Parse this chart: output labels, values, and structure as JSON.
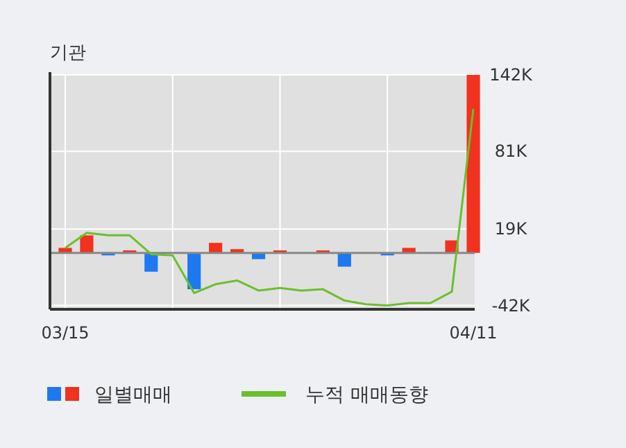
{
  "chart_data": {
    "type": "bar",
    "title": "기관",
    "categories": [
      "03/15",
      null,
      null,
      null,
      null,
      null,
      null,
      null,
      null,
      null,
      null,
      null,
      null,
      null,
      null,
      null,
      null,
      null,
      null,
      "04/11"
    ],
    "series": [
      {
        "name": "일별매매",
        "values": [
          4000,
          14000,
          -2000,
          2000,
          -15000,
          0,
          -29000,
          8000,
          3000,
          -5000,
          2000,
          0,
          2000,
          -11000,
          0,
          -2000,
          4000,
          0,
          10000,
          142000
        ],
        "colors": [
          "#f0321e",
          "#f0321e",
          "#1e78f0",
          "#f0321e",
          "#1e78f0",
          "#f0321e",
          "#1e78f0",
          "#f0321e",
          "#f0321e",
          "#1e78f0",
          "#f0321e",
          "#f0321e",
          "#f0321e",
          "#1e78f0",
          "#f0321e",
          "#1e78f0",
          "#f0321e",
          "#f0321e",
          "#f0321e",
          "#f0321e"
        ]
      },
      {
        "name": "누적 매매동향",
        "type": "line",
        "color": "#6cbf2c",
        "values": [
          4000,
          16000,
          14000,
          14000,
          -1000,
          -2000,
          -32000,
          -25000,
          -22000,
          -30000,
          -28000,
          -30000,
          -29000,
          -38000,
          -41000,
          -42000,
          -40000,
          -40000,
          -31000,
          115000
        ]
      }
    ],
    "ylim": [
      -45000,
      142000
    ],
    "yticks": [
      {
        "value": 142000,
        "label": "142K"
      },
      {
        "value": 81000,
        "label": "81K"
      },
      {
        "value": 19000,
        "label": "19K"
      },
      {
        "value": -42000,
        "label": "-42K"
      }
    ],
    "grid": true,
    "legend": "bottom"
  }
}
